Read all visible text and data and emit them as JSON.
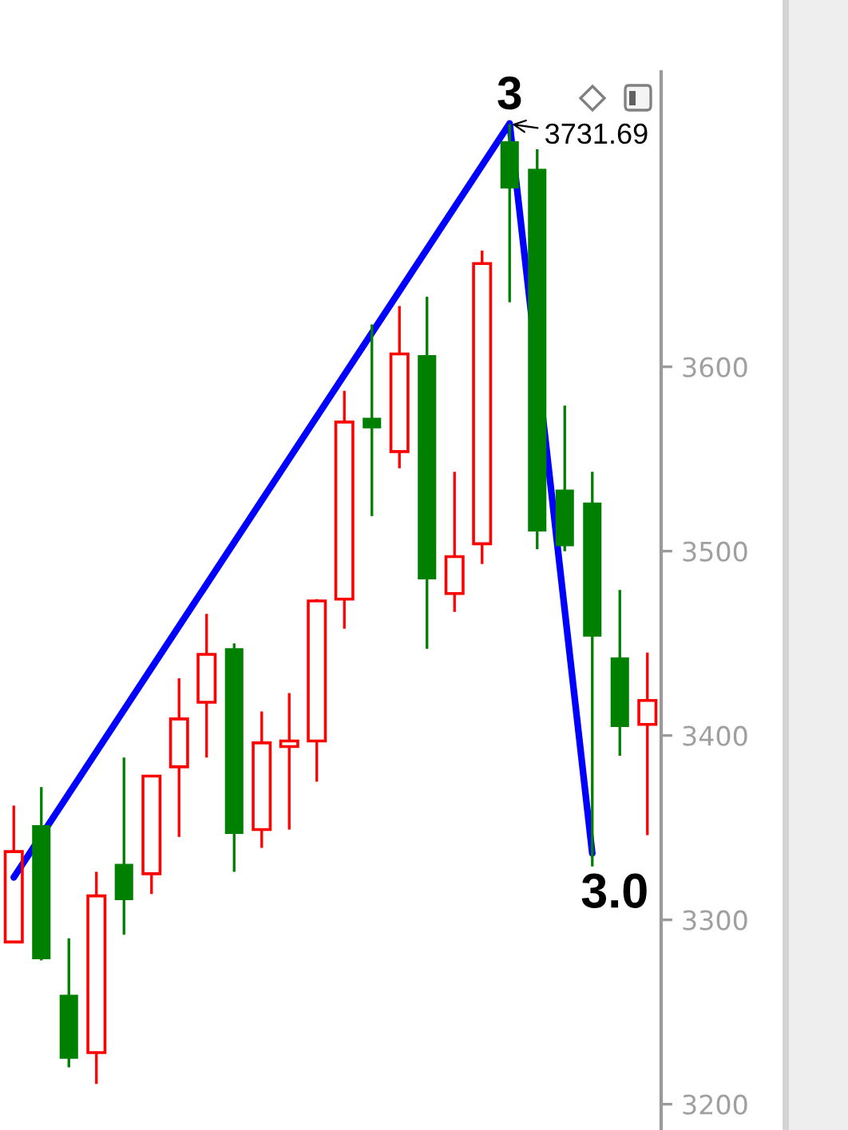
{
  "chart_data": {
    "type": "candlestick",
    "categories": [
      null,
      null,
      null,
      null,
      null,
      null,
      null,
      null,
      null,
      null,
      null,
      null,
      null,
      null,
      null,
      null,
      null,
      null,
      null,
      null,
      null,
      null,
      null,
      null
    ],
    "ohlc": [
      [
        3288,
        3362,
        3288,
        3337
      ],
      [
        3351,
        3372,
        3278,
        3279
      ],
      [
        3259,
        3290,
        3220,
        3225
      ],
      [
        3228,
        3326,
        3211,
        3313
      ],
      [
        3330,
        3388,
        3292,
        3311
      ],
      [
        3325,
        3378,
        3314,
        3378
      ],
      [
        3383,
        3431,
        3345,
        3409
      ],
      [
        3418,
        3466,
        3388,
        3444
      ],
      [
        3447,
        3450,
        3326,
        3347
      ],
      [
        3349,
        3413,
        3339,
        3396
      ],
      [
        3394,
        3423,
        3349,
        3397
      ],
      [
        3397,
        3474,
        3375,
        3473
      ],
      [
        3474,
        3587,
        3458,
        3570
      ],
      [
        3572,
        3623,
        3519,
        3567
      ],
      [
        3554,
        3633,
        3545,
        3607
      ],
      [
        3606,
        3638,
        3447,
        3485
      ],
      [
        3477,
        3543,
        3467,
        3497
      ],
      [
        3504,
        3663,
        3493,
        3656
      ],
      [
        3722,
        3731.69,
        3635,
        3697
      ],
      [
        3707,
        3718,
        3501,
        3511
      ],
      [
        3533,
        3579,
        3500,
        3503
      ],
      [
        3526,
        3543,
        3329,
        3454
      ],
      [
        3442,
        3479,
        3389,
        3405
      ],
      [
        3406,
        3445,
        3346,
        3419
      ]
    ],
    "colors": [
      "#ff0000",
      "#008000",
      "#008000",
      "#ff0000",
      "#008000",
      "#ff0000",
      "#ff0000",
      "#ff0000",
      "#008000",
      "#ff0000",
      "#ff0000",
      "#ff0000",
      "#ff0000",
      "#008000",
      "#ff0000",
      "#008000",
      "#ff0000",
      "#ff0000",
      "#008000",
      "#008000",
      "#008000",
      "#008000",
      "#008000",
      "#ff0000"
    ],
    "series": [
      {
        "type": "line",
        "color": "#0000ff",
        "values": [
          3323,
          null,
          null,
          null,
          null,
          null,
          null,
          null,
          null,
          null,
          null,
          null,
          null,
          null,
          null,
          null,
          null,
          null,
          3732,
          null,
          null,
          3336,
          null,
          null
        ]
      }
    ],
    "ylim": [
      3186,
      3760
    ],
    "yticks": [
      3200,
      3300,
      3400,
      3500,
      3600
    ],
    "tick_labels": "y",
    "grid": false,
    "annotations": [
      "3",
      "3731.69",
      "3.0"
    ]
  }
}
